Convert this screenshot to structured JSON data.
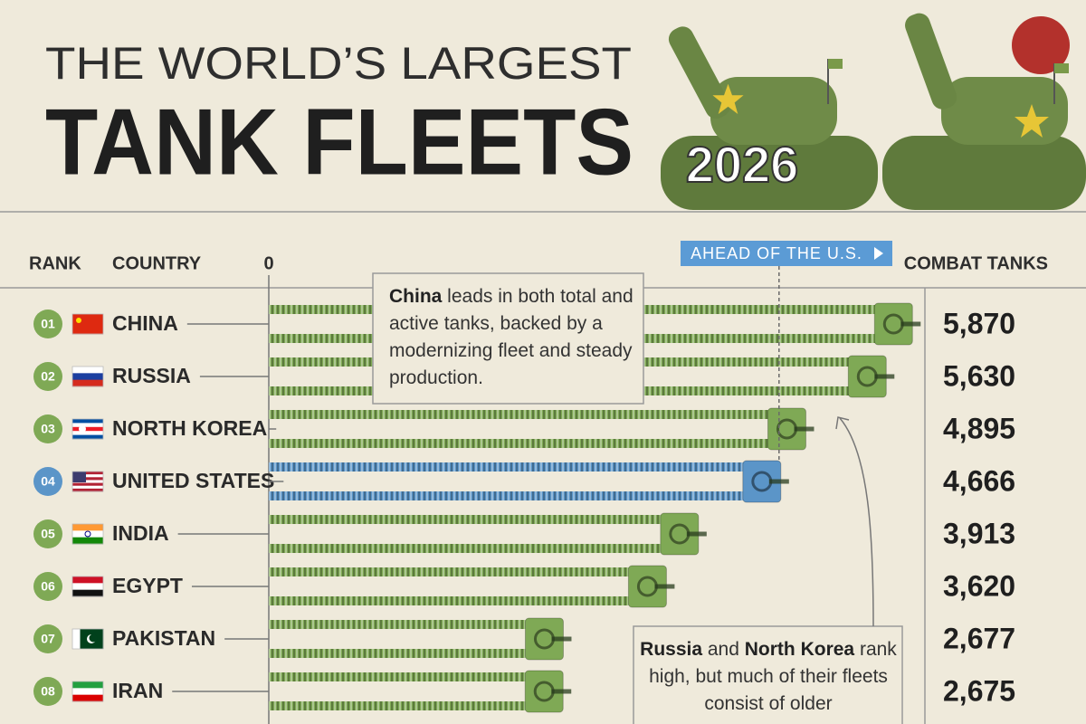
{
  "chart_data": {
    "type": "bar",
    "title_top": "THE WORLD’S LARGEST",
    "title": "TANK FLEETS",
    "subtitle": "2026",
    "rank_header": "RANK",
    "category_header": "COUNTRY",
    "value_header": "COMBAT TANKS",
    "reference": {
      "label": "AHEAD OF THE U.S.",
      "category": "UNITED STATES"
    },
    "ranks": [
      "01",
      "02",
      "03",
      "04",
      "05",
      "06",
      "07",
      "08"
    ],
    "categories": [
      "CHINA",
      "RUSSIA",
      "NORTH KOREA",
      "UNITED STATES",
      "INDIA",
      "EGYPT",
      "PAKISTAN",
      "IRAN"
    ],
    "values": [
      5870,
      5630,
      4895,
      4666,
      3913,
      3620,
      2677,
      2675
    ],
    "value_labels": [
      "5,870",
      "5,630",
      "4,895",
      "4,666",
      "3,913",
      "3,620",
      "2,677",
      "2,675"
    ],
    "colors": [
      "#7fa955",
      "#7fa955",
      "#7fa955",
      "#5b95c8",
      "#7fa955",
      "#7fa955",
      "#7fa955",
      "#7fa955"
    ],
    "xlim": [
      0,
      6000
    ],
    "xticks": [
      0
    ],
    "annotations": [
      {
        "segments": [
          {
            "text": "China",
            "bold": true
          },
          {
            "text": " leads in both total and active tanks, backed by a modernizing fleet and steady production.",
            "bold": false
          }
        ]
      },
      {
        "segments": [
          {
            "text": "Russia",
            "bold": true
          },
          {
            "text": " and ",
            "bold": false
          },
          {
            "text": "North Korea",
            "bold": true
          },
          {
            "text": " rank high, but much of their fleets consist of older",
            "bold": false
          }
        ]
      }
    ]
  }
}
